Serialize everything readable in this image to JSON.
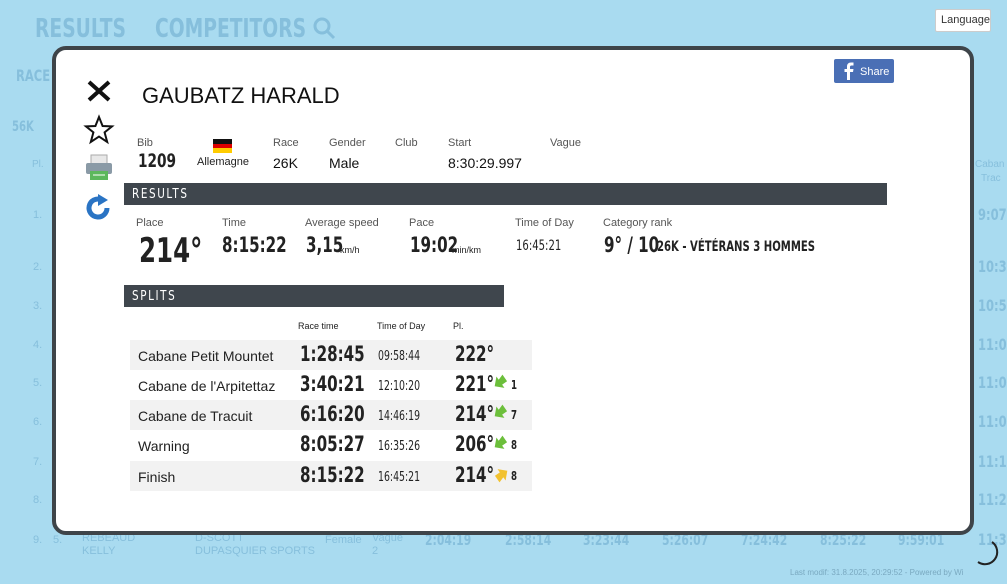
{
  "background": {
    "tabs": [
      "RESULTS",
      "COMPETITORS"
    ],
    "language": "Language",
    "race_label": "RACE",
    "distance": "56K",
    "col_pl": "Pl.",
    "col_right": [
      "Caban",
      "Trac"
    ],
    "row_numbers": [
      "1.",
      "2.",
      "3.",
      "4.",
      "5.",
      "6.",
      "7.",
      "8.",
      "9."
    ],
    "right_times": [
      "9:07",
      "10:3",
      "10:5",
      "11:0",
      "11:0",
      "11:0",
      "11:1",
      "11:2",
      "11:3"
    ],
    "last_row": {
      "cat_rank": "5.",
      "name": [
        "REBEAUD",
        "KELLY"
      ],
      "club": [
        "D-SCOTT",
        "DUPASQUIER SPORTS"
      ],
      "gender": "Female",
      "vague": [
        "Vague",
        "2"
      ],
      "times": [
        "2:04:19",
        "2:58:14",
        "3:23:44",
        "5:26:07",
        "7:24:42",
        "8:25:22",
        "9:59:01"
      ]
    },
    "footer": "Last modif: 31.8.2025, 20:29:52 - Powered by Wi"
  },
  "modal": {
    "share": "Share",
    "name": "GAUBATZ HARALD",
    "info": {
      "labels": [
        "Bib",
        "Race",
        "Gender",
        "Club",
        "Start",
        "Vague"
      ],
      "bib": "1209",
      "country": "Allemagne",
      "race": "26K",
      "gender": "Male",
      "start": "8:30:29.997"
    },
    "results": {
      "title": "RESULTS",
      "labels": [
        "Place",
        "Time",
        "Average speed",
        "Pace",
        "Time of Day",
        "Category rank"
      ],
      "place": "214°",
      "time": "8:15:22",
      "speed": "3,15",
      "speed_unit": "km/h",
      "pace": "19:02",
      "pace_unit": "min/km",
      "time_of_day": "16:45:21",
      "category_rank": "9° / 10",
      "category": "26K - VÉTÉRANS 3 HOMMES"
    },
    "splits": {
      "title": "SPLITS",
      "headers": [
        "Race time",
        "Time of Day",
        "Pl."
      ],
      "rows": [
        {
          "name": "Cabane Petit Mountet",
          "race_time": "1:28:45",
          "time_of_day": "09:58:44",
          "place": "222°"
        },
        {
          "name": "Cabane de l'Arpitettaz",
          "race_time": "3:40:21",
          "time_of_day": "12:10:20",
          "place": "221°",
          "change": "1"
        },
        {
          "name": "Cabane de Tracuit",
          "race_time": "6:16:20",
          "time_of_day": "14:46:19",
          "place": "214°",
          "change": "7"
        },
        {
          "name": "Warning",
          "race_time": "8:05:27",
          "time_of_day": "16:35:26",
          "place": "206°",
          "change": "8"
        },
        {
          "name": "Finish",
          "race_time": "8:15:22",
          "time_of_day": "16:45:21",
          "place": "214°",
          "change": "8"
        }
      ]
    }
  }
}
